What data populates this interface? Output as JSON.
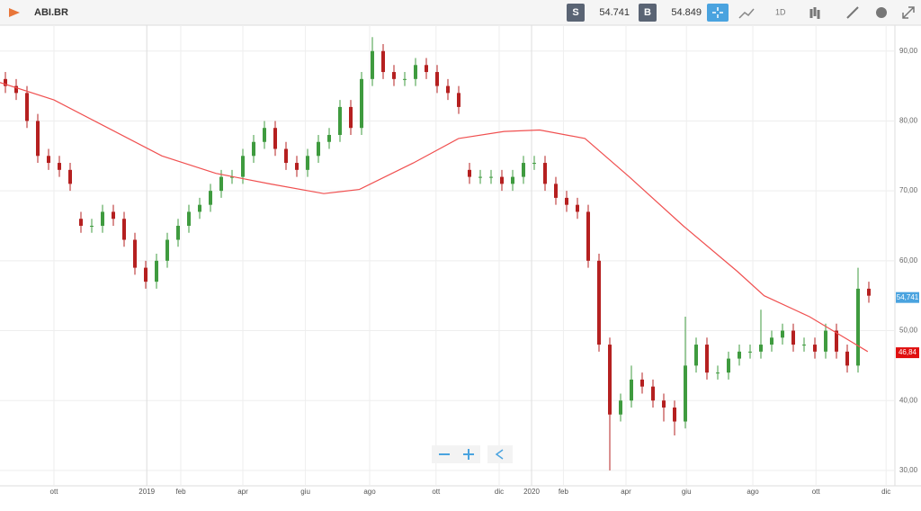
{
  "header": {
    "symbol": "ABI.BR",
    "sell_label": "S",
    "sell": "54.741",
    "buy_label": "B",
    "buy": "54.849",
    "interval": "1D"
  },
  "chart_data": {
    "type": "candlestick",
    "categories": [
      null,
      null,
      null,
      null,
      null,
      null,
      null,
      null,
      null,
      null,
      null,
      null,
      null,
      null,
      null,
      null,
      null,
      null,
      null,
      null,
      null,
      null,
      null,
      null,
      null,
      null,
      null,
      null,
      null,
      null,
      null,
      null,
      null,
      null,
      null,
      null,
      null,
      null,
      null,
      null,
      null,
      null,
      null,
      null,
      null,
      null,
      null,
      null,
      null,
      null,
      null,
      null,
      null,
      null,
      null,
      null,
      null,
      null,
      null,
      null,
      null,
      null,
      null,
      null,
      null,
      null,
      null,
      null,
      null,
      null,
      null,
      null,
      null,
      null,
      null,
      null,
      null,
      null,
      null,
      null,
      null
    ],
    "open": [
      86,
      85,
      84,
      80,
      75,
      74,
      73,
      66,
      65,
      65,
      67,
      66,
      63,
      59,
      57,
      60,
      63,
      65,
      67,
      68,
      70,
      72,
      72,
      75,
      77,
      79,
      76,
      74,
      73,
      75,
      77,
      78,
      82,
      79,
      86,
      90,
      87,
      86,
      86,
      88,
      87,
      85,
      84,
      73,
      72,
      72,
      72,
      71,
      72,
      74,
      74,
      71,
      69,
      68,
      67,
      60,
      48,
      38,
      40,
      43,
      42,
      40,
      39,
      37,
      45,
      48,
      44,
      44,
      46,
      47,
      47,
      48,
      49,
      50,
      48,
      48,
      47,
      50,
      47,
      45,
      56
    ],
    "high": [
      87,
      86,
      85,
      81,
      76,
      75,
      74,
      67,
      66,
      68,
      68,
      67,
      64,
      60,
      61,
      64,
      66,
      68,
      69,
      71,
      73,
      73,
      76,
      78,
      80,
      80,
      77,
      75,
      76,
      78,
      79,
      83,
      83,
      87,
      92,
      91,
      88,
      87,
      89,
      89,
      88,
      86,
      85,
      74,
      73,
      73,
      73,
      73,
      75,
      75,
      75,
      72,
      70,
      69,
      68,
      61,
      49,
      41,
      45,
      44,
      43,
      41,
      40,
      52,
      49,
      49,
      45,
      47,
      48,
      48,
      53,
      50,
      51,
      51,
      49,
      49,
      51,
      51,
      48,
      59,
      57
    ],
    "low": [
      84,
      83,
      79,
      74,
      73,
      72,
      70,
      64,
      64,
      64,
      65,
      62,
      58,
      56,
      56,
      59,
      62,
      64,
      66,
      67,
      69,
      71,
      71,
      74,
      76,
      75,
      73,
      72,
      72,
      74,
      76,
      77,
      78,
      78,
      85,
      86,
      85,
      85,
      85,
      86,
      84,
      83,
      81,
      71,
      71,
      71,
      70,
      70,
      71,
      73,
      70,
      68,
      67,
      66,
      59,
      47,
      30,
      37,
      39,
      41,
      39,
      37,
      35,
      36,
      44,
      43,
      43,
      43,
      45,
      46,
      46,
      47,
      48,
      47,
      47,
      46,
      46,
      46,
      44,
      44,
      54
    ],
    "close": [
      85,
      84,
      80,
      75,
      74,
      73,
      71,
      65,
      65,
      67,
      66,
      63,
      59,
      57,
      60,
      63,
      65,
      67,
      68,
      70,
      72,
      72,
      75,
      77,
      79,
      76,
      74,
      73,
      75,
      77,
      78,
      82,
      79,
      86,
      90,
      87,
      86,
      86,
      88,
      87,
      85,
      84,
      82,
      72,
      72,
      72,
      71,
      72,
      74,
      74,
      71,
      69,
      68,
      67,
      60,
      48,
      38,
      40,
      43,
      42,
      40,
      39,
      37,
      45,
      48,
      44,
      44,
      46,
      47,
      47,
      48,
      49,
      50,
      48,
      48,
      47,
      50,
      47,
      45,
      56,
      55
    ],
    "up_color": "#3f9b3f",
    "down_color": "#b52020",
    "ma": {
      "color": "#f05050",
      "x": [
        0,
        5,
        10,
        15,
        20,
        25,
        30,
        33.3,
        38.3,
        42.5,
        46.7,
        50,
        54.2,
        58.3,
        63.3,
        68.3,
        70.8,
        75,
        80.4
      ],
      "values": [
        85.5,
        83,
        79,
        75,
        72.5,
        71,
        69.6,
        70.2,
        74,
        77.5,
        78.5,
        78.7,
        77.5,
        72,
        65,
        58.5,
        55,
        52,
        47
      ]
    },
    "xlim": [
      0,
      83
    ],
    "ylim": [
      27.8,
      93.7
    ],
    "yticks": [
      {
        "value": 30,
        "label": "30,00"
      },
      {
        "value": 40,
        "label": "40,00"
      },
      {
        "value": 50,
        "label": "50,00"
      },
      {
        "value": 60,
        "label": "60,00"
      },
      {
        "value": 70,
        "label": "70,00"
      },
      {
        "value": 80,
        "label": "80,00"
      },
      {
        "value": 90,
        "label": "90,00"
      }
    ],
    "xticks": [
      {
        "value": 5,
        "label": "ott"
      },
      {
        "value": 13.6,
        "label": "2019"
      },
      {
        "value": 16.75,
        "label": "feb"
      },
      {
        "value": 22.5,
        "label": "apr"
      },
      {
        "value": 28.3,
        "label": "giu"
      },
      {
        "value": 34.25,
        "label": "ago"
      },
      {
        "value": 40.4,
        "label": "ott"
      },
      {
        "value": 46.25,
        "label": "dic"
      },
      {
        "value": 49.25,
        "label": "2020"
      },
      {
        "value": 52.2,
        "label": "feb"
      },
      {
        "value": 58,
        "label": "apr"
      },
      {
        "value": 63.6,
        "label": "giu"
      },
      {
        "value": 69.75,
        "label": "ago"
      },
      {
        "value": 75.6,
        "label": "ott"
      },
      {
        "value": 82.1,
        "label": "dic"
      }
    ],
    "grid": true,
    "price_tags": [
      {
        "value": 54.741,
        "label": "54,741",
        "color": "#4aa3df"
      },
      {
        "value": 46.84,
        "label": "46,84",
        "color": "#e01010"
      }
    ]
  }
}
